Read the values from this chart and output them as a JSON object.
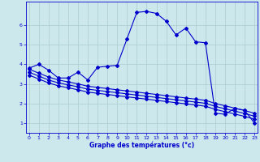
{
  "xlabel": "Graphe des températures (°c)",
  "background_color": "#cce8ec",
  "grid_color": "#aacccc",
  "line_color": "#0000cc",
  "x_ticks": [
    0,
    1,
    2,
    3,
    4,
    5,
    6,
    7,
    8,
    9,
    10,
    11,
    12,
    13,
    14,
    15,
    16,
    17,
    18,
    19,
    20,
    21,
    22,
    23
  ],
  "ylim": [
    0.5,
    7.2
  ],
  "xlim": [
    -0.3,
    23.3
  ],
  "line1_y": [
    3.8,
    4.0,
    3.7,
    3.3,
    3.3,
    3.6,
    3.2,
    3.85,
    3.9,
    3.95,
    5.3,
    6.65,
    6.7,
    6.6,
    6.2,
    5.5,
    5.85,
    5.15,
    5.1,
    1.5,
    1.45,
    1.75,
    1.65,
    1.0
  ],
  "line2_y": [
    3.75,
    3.55,
    3.35,
    3.2,
    3.1,
    3.0,
    2.88,
    2.82,
    2.76,
    2.7,
    2.64,
    2.58,
    2.52,
    2.46,
    2.4,
    2.34,
    2.28,
    2.22,
    2.16,
    2.0,
    1.88,
    1.76,
    1.64,
    1.5
  ],
  "line3_y": [
    3.6,
    3.4,
    3.2,
    3.05,
    2.95,
    2.85,
    2.73,
    2.67,
    2.61,
    2.55,
    2.49,
    2.43,
    2.37,
    2.31,
    2.25,
    2.19,
    2.13,
    2.07,
    2.01,
    1.85,
    1.73,
    1.61,
    1.49,
    1.35
  ],
  "line4_y": [
    3.45,
    3.25,
    3.05,
    2.9,
    2.8,
    2.7,
    2.58,
    2.52,
    2.46,
    2.4,
    2.34,
    2.28,
    2.22,
    2.16,
    2.1,
    2.04,
    1.98,
    1.92,
    1.86,
    1.7,
    1.58,
    1.46,
    1.34,
    1.2
  ],
  "yticks": [
    1,
    2,
    3,
    4,
    5,
    6
  ],
  "marker": "D",
  "markersize": 2,
  "linewidth": 0.8
}
